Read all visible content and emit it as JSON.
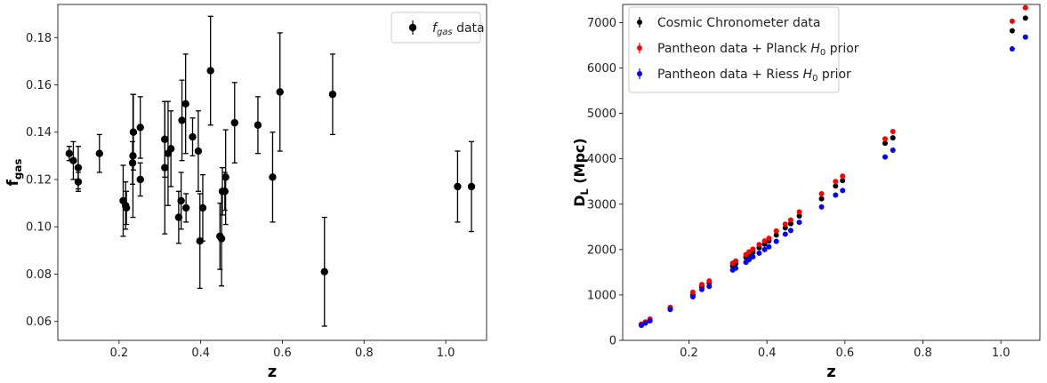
{
  "chart_data": [
    {
      "type": "scatter",
      "xlabel": "z",
      "ylabel": "f",
      "ylabel_sub": "gas",
      "xlim": [
        0.05,
        1.1
      ],
      "ylim": [
        0.052,
        0.194
      ],
      "xticks": [
        0.2,
        0.4,
        0.6,
        0.8,
        1.0
      ],
      "xtick_labels": [
        "0.2",
        "0.4",
        "0.6",
        "0.8",
        "1.0"
      ],
      "yticks": [
        0.06,
        0.08,
        0.1,
        0.12,
        0.14,
        0.16,
        0.18
      ],
      "ytick_labels": [
        "0.06",
        "0.08",
        "0.10",
        "0.12",
        "0.14",
        "0.16",
        "0.18"
      ],
      "legend_position": "top-right",
      "series": [
        {
          "legend_text": "f",
          "legend_sub": "gas",
          "legend_suffix": " data",
          "color": "#000000",
          "x": [
            0.078,
            0.088,
            0.1,
            0.1,
            0.152,
            0.21,
            0.216,
            0.218,
            0.233,
            0.234,
            0.235,
            0.252,
            0.252,
            0.312,
            0.312,
            0.32,
            0.327,
            0.346,
            0.352,
            0.354,
            0.363,
            0.364,
            0.38,
            0.394,
            0.398,
            0.405,
            0.424,
            0.447,
            0.451,
            0.453,
            0.459,
            0.461,
            0.483,
            0.54,
            0.576,
            0.594,
            0.703,
            0.723,
            1.029,
            1.063
          ],
          "y": [
            0.131,
            0.128,
            0.125,
            0.119,
            0.131,
            0.111,
            0.109,
            0.108,
            0.127,
            0.13,
            0.14,
            0.12,
            0.142,
            0.125,
            0.137,
            0.131,
            0.133,
            0.104,
            0.111,
            0.145,
            0.152,
            0.108,
            0.138,
            0.132,
            0.094,
            0.108,
            0.166,
            0.096,
            0.095,
            0.115,
            0.115,
            0.121,
            0.144,
            0.143,
            0.121,
            0.157,
            0.081,
            0.156,
            0.117,
            0.117
          ],
          "yerr": [
            0.003,
            0.008,
            0.009,
            0.004,
            0.008,
            0.015,
            0.01,
            0.007,
            0.009,
            0.026,
            0.016,
            0.007,
            0.013,
            0.028,
            0.016,
            0.022,
            0.016,
            0.011,
            0.012,
            0.017,
            0.021,
            0.006,
            0.008,
            0.017,
            0.02,
            0.014,
            0.023,
            0.014,
            0.02,
            0.01,
            0.008,
            0.02,
            0.017,
            0.012,
            0.019,
            0.025,
            0.023,
            0.017,
            0.015,
            0.019
          ]
        }
      ]
    },
    {
      "type": "scatter",
      "xlabel": "z",
      "ylabel": "D",
      "ylabel_sub": "L",
      "ylabel_suffix": " (Mpc)",
      "xlim": [
        0.03,
        1.1
      ],
      "ylim": [
        0,
        7400
      ],
      "xticks": [
        0.2,
        0.4,
        0.6,
        0.8,
        1.0
      ],
      "xtick_labels": [
        "0.2",
        "0.4",
        "0.6",
        "0.8",
        "1.0"
      ],
      "yticks": [
        0,
        1000,
        2000,
        3000,
        4000,
        5000,
        6000,
        7000
      ],
      "ytick_labels": [
        "0",
        "1000",
        "2000",
        "3000",
        "4000",
        "5000",
        "6000",
        "7000"
      ],
      "legend_position": "top-left",
      "series": [
        {
          "legend_text": "Cosmic Chronometer data",
          "color": "#000000",
          "x": [
            0.078,
            0.088,
            0.1,
            0.152,
            0.21,
            0.233,
            0.252,
            0.312,
            0.32,
            0.346,
            0.354,
            0.364,
            0.38,
            0.394,
            0.405,
            0.424,
            0.447,
            0.461,
            0.483,
            0.54,
            0.576,
            0.594,
            0.703,
            0.723,
            1.029,
            1.063
          ],
          "y": [
            350,
            395,
            450,
            700,
            1000,
            1180,
            1270,
            1640,
            1690,
            1830,
            1880,
            1940,
            2040,
            2120,
            2190,
            2320,
            2480,
            2570,
            2740,
            3120,
            3400,
            3520,
            4340,
            4460,
            6820,
            7100
          ]
        },
        {
          "legend_text": "Pantheon data + Planck ",
          "legend_math": "H",
          "legend_sub": "0",
          "legend_suffix": " prior",
          "color": "#ff0000",
          "x": [
            0.078,
            0.088,
            0.1,
            0.152,
            0.21,
            0.233,
            0.252,
            0.312,
            0.32,
            0.346,
            0.354,
            0.364,
            0.38,
            0.394,
            0.405,
            0.424,
            0.447,
            0.461,
            0.483,
            0.54,
            0.576,
            0.594,
            0.703,
            0.723,
            1.029,
            1.063
          ],
          "y": [
            360,
            405,
            470,
            730,
            1060,
            1230,
            1310,
            1700,
            1750,
            1890,
            1950,
            2010,
            2110,
            2190,
            2250,
            2410,
            2560,
            2650,
            2830,
            3230,
            3500,
            3620,
            4440,
            4600,
            7030,
            7330
          ]
        },
        {
          "legend_text": "Pantheon data + Riess ",
          "legend_math": "H",
          "legend_sub": "0",
          "legend_suffix": " prior",
          "color": "#0000ff",
          "x": [
            0.078,
            0.088,
            0.1,
            0.152,
            0.21,
            0.233,
            0.252,
            0.312,
            0.32,
            0.346,
            0.354,
            0.364,
            0.38,
            0.394,
            0.405,
            0.424,
            0.447,
            0.461,
            0.483,
            0.54,
            0.576,
            0.594,
            0.703,
            0.723,
            1.029,
            1.063
          ],
          "y": [
            330,
            380,
            430,
            680,
            960,
            1120,
            1190,
            1550,
            1590,
            1720,
            1780,
            1840,
            1920,
            2000,
            2060,
            2180,
            2340,
            2420,
            2600,
            2940,
            3200,
            3300,
            4040,
            4190,
            6420,
            6680
          ]
        }
      ]
    }
  ]
}
